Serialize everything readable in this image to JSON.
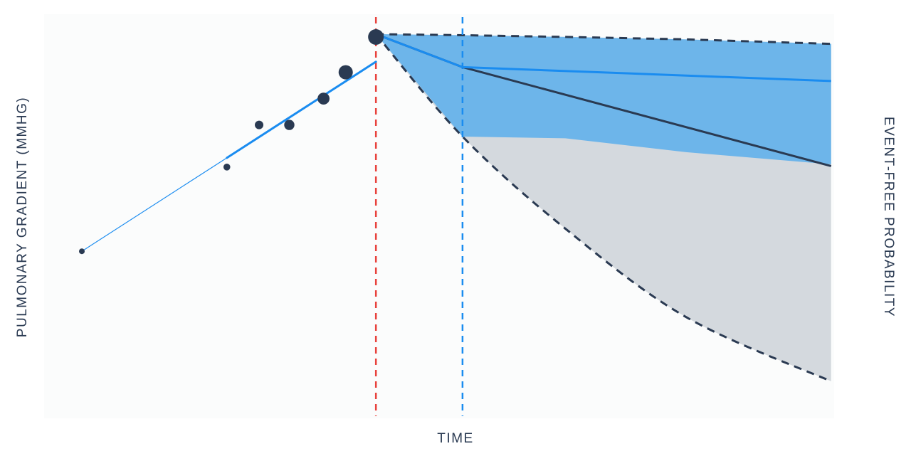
{
  "chart_data": {
    "type": "line",
    "title": "",
    "xlabel": "TIME",
    "ylabel_left": "PULMONARY GRADIENT (MMHG)",
    "ylabel_right": "EVENT-FREE PROBABILITY",
    "grid": false,
    "colors": {
      "background": "#fbfcfc",
      "gradient_points": "#2a3a52",
      "gradient_trend": "#1a8cf0",
      "event_line": "#e8413c",
      "landmark_line": "#1a8cf0",
      "band_outer": "#d4d9de",
      "band_inner": "#6db5ea",
      "band_edges": "#2a3a52",
      "survival_dark": "#2a3a52",
      "survival_blue": "#1a8cf0"
    },
    "gradient_series": {
      "points": [
        {
          "t": 1.0,
          "v": 0.32,
          "w": 1
        },
        {
          "t": 4.6,
          "v": 0.48,
          "w": 1.2
        },
        {
          "t": 5.4,
          "v": 0.56,
          "w": 1.5
        },
        {
          "t": 6.15,
          "v": 0.56,
          "w": 1.8
        },
        {
          "t": 7.0,
          "v": 0.61,
          "w": 2.1
        },
        {
          "t": 7.55,
          "v": 0.66,
          "w": 2.5
        }
      ],
      "trend": [
        {
          "t": 1.0,
          "v": 0.32
        },
        {
          "t": 8.3,
          "v": 0.68
        }
      ]
    },
    "event_time": 8.3,
    "landmark_time": 10.45,
    "survival_band": {
      "t": [
        8.3,
        10.45,
        13.0,
        16.0,
        19.6
      ],
      "outer_upper": [
        1.0,
        0.997,
        0.992,
        0.985,
        0.972
      ],
      "outer_lower": [
        1.0,
        0.705,
        0.44,
        0.185,
        0.0
      ],
      "inner_upper": [
        1.0,
        0.997,
        0.992,
        0.985,
        0.972
      ],
      "inner_lower": [
        1.0,
        0.705,
        0.7,
        0.66,
        0.625
      ]
    },
    "survival_curves": [
      {
        "t": [
          8.3,
          10.45,
          19.6
        ],
        "p": [
          1.0,
          0.905,
          0.62
        ],
        "color": "survival_dark"
      },
      {
        "t": [
          8.3,
          10.45,
          19.6
        ],
        "p": [
          1.0,
          0.905,
          0.865
        ],
        "color": "survival_blue"
      }
    ],
    "start_marker": {
      "t": 8.3,
      "p": 1.0
    }
  }
}
